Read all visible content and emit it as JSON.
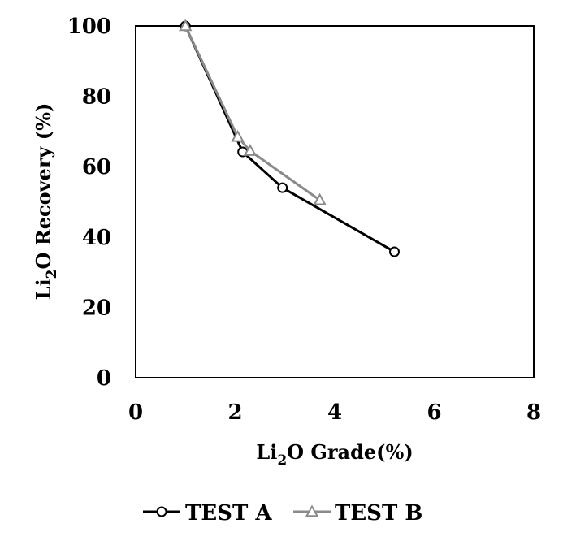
{
  "chart_data": {
    "type": "line",
    "xlabel": {
      "base": "Li",
      "sub": "2",
      "rest": "O Grade(%)"
    },
    "ylabel": {
      "base": "Li",
      "sub": "2",
      "rest": "O Recovery  (%)"
    },
    "xlim": [
      0,
      8
    ],
    "ylim": [
      0,
      100
    ],
    "x_ticks": [
      0,
      2,
      4,
      6,
      8
    ],
    "y_ticks": [
      0,
      20,
      40,
      60,
      80,
      100
    ],
    "grid": false,
    "legend_position": "bottom",
    "series": [
      {
        "name": "TEST A",
        "color": "#000000",
        "marker": "circle",
        "points": [
          [
            1.0,
            100
          ],
          [
            2.15,
            64.2
          ],
          [
            2.95,
            54.0
          ],
          [
            5.2,
            35.8
          ]
        ]
      },
      {
        "name": "TEST B",
        "color": "#8a8a8a",
        "marker": "triangle",
        "points": [
          [
            1.0,
            100
          ],
          [
            2.05,
            68.5
          ],
          [
            2.3,
            64.5
          ],
          [
            3.7,
            50.5
          ]
        ]
      }
    ]
  }
}
